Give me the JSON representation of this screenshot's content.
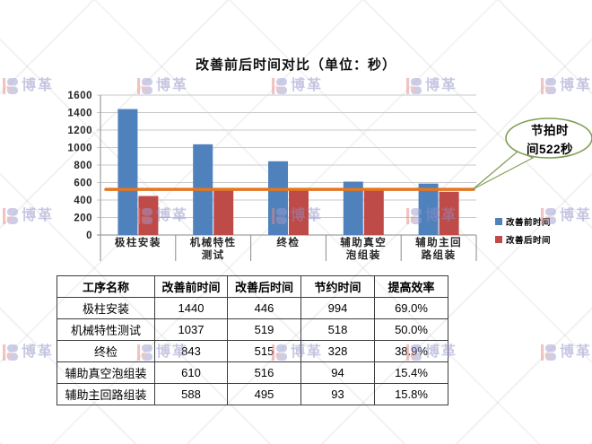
{
  "chart_data": {
    "type": "bar",
    "title": "改善前后时间对比（单位：秒）",
    "categories": [
      "极柱安装",
      "机械特性测试",
      "终检",
      "辅助真空泡组装",
      "辅助主回路组装"
    ],
    "series": [
      {
        "name": "改善前时间",
        "color": "#4f81bd",
        "values": [
          1440,
          1037,
          843,
          610,
          588
        ]
      },
      {
        "name": "改善后时间",
        "color": "#bf4b48",
        "values": [
          446,
          519,
          515,
          516,
          495
        ]
      }
    ],
    "reference_line": {
      "label": "节拍时间522秒",
      "value": 522,
      "color": "#e5761f"
    },
    "callout": {
      "line1": "节拍时",
      "line2": "间522秒",
      "border_color": "#7f9e55",
      "fill": "#ffffff"
    },
    "xlabel": "",
    "ylabel": "",
    "ylim": [
      0,
      1600
    ],
    "ytick_step": 200,
    "grid": true,
    "gridline_color": "#c9c9c9",
    "axis_color": "#8a8a8a",
    "legend_position": "right-bottom"
  },
  "table": {
    "columns": [
      "工序名称",
      "改善前时间",
      "改善后时间",
      "节约时间",
      "提高效率"
    ],
    "rows": [
      [
        "极柱安装",
        "1440",
        "446",
        "994",
        "69.0%"
      ],
      [
        "机械特性测试",
        "1037",
        "519",
        "518",
        "50.0%"
      ],
      [
        "终检",
        "843",
        "515",
        "328",
        "38.9%"
      ],
      [
        "辅助真空泡组装",
        "610",
        "516",
        "94",
        "15.4%"
      ],
      [
        "辅助主回路组装",
        "588",
        "495",
        "93",
        "15.8%"
      ]
    ]
  },
  "watermark": {
    "brand_text": "博革",
    "text_color": "#8f8fc8",
    "icon_red": "#e08989",
    "icon_purple": "#9b9bd0"
  }
}
